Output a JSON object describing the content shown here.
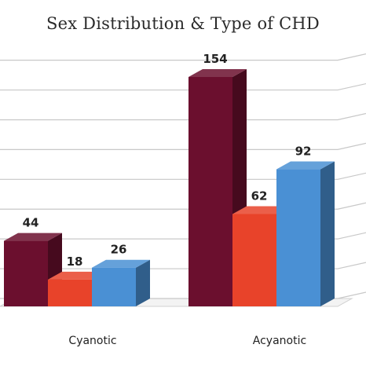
{
  "chart_data": {
    "type": "bar",
    "title": "Sex Distribution & Type of CHD",
    "categories": [
      "Cyanotic",
      "Acyanotic"
    ],
    "series": [
      {
        "values": [
          44,
          154
        ],
        "color": "#6b0f2e"
      },
      {
        "values": [
          18,
          62
        ],
        "color": "#e8432a"
      },
      {
        "values": [
          26,
          92
        ],
        "color": "#4a90d4"
      }
    ],
    "ylim": [
      0,
      160
    ],
    "grid": true,
    "style": "3d-clustered-column"
  }
}
